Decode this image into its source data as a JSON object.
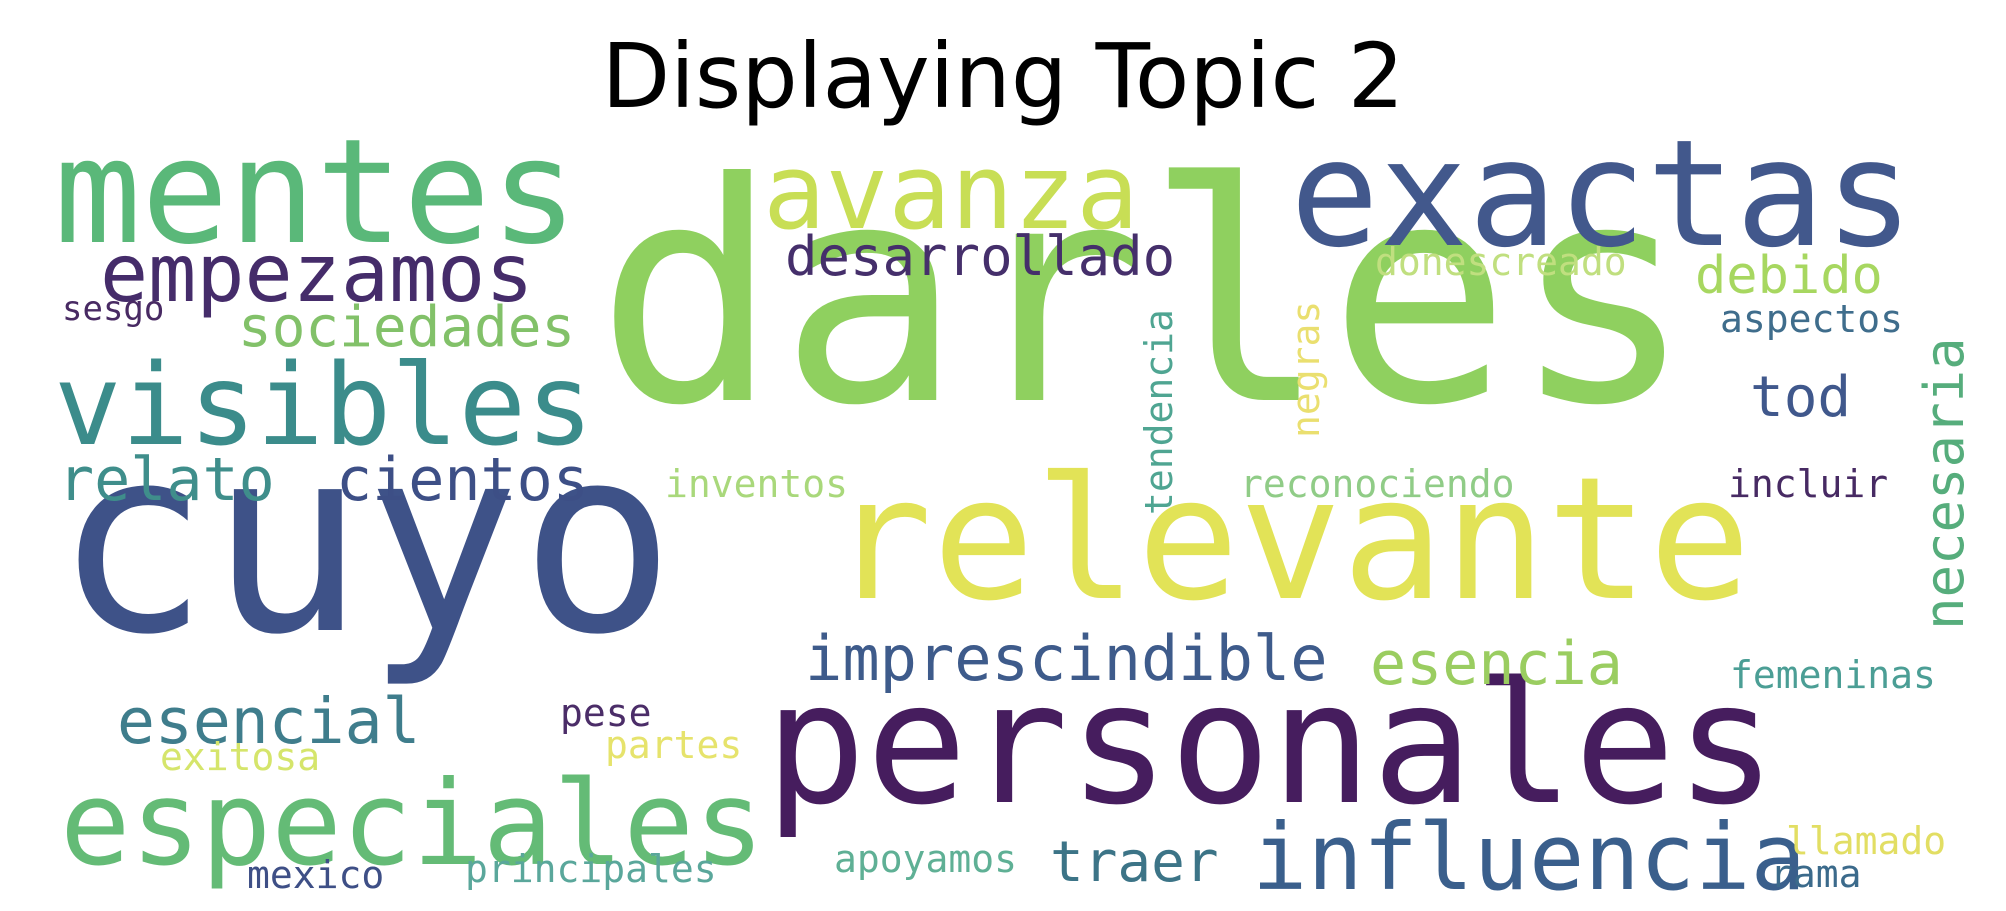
{
  "title": "Displaying Topic 2",
  "colors": {
    "background": "#ffffff",
    "title": "#000000"
  },
  "words": [
    {
      "text": "darles",
      "color": "#8fd05f"
    },
    {
      "text": "cuyo",
      "color": "#3e5288"
    },
    {
      "text": "relevante",
      "color": "#e2e357"
    },
    {
      "text": "personales",
      "color": "#461d5e"
    },
    {
      "text": "exactas",
      "color": "#42588c"
    },
    {
      "text": "mentes",
      "color": "#5ab879"
    },
    {
      "text": "avanza",
      "color": "#c8de55"
    },
    {
      "text": "visibles",
      "color": "#3b8c8b"
    },
    {
      "text": "especiales",
      "color": "#64bb76"
    },
    {
      "text": "influencia",
      "color": "#3a5f8c"
    },
    {
      "text": "empezamos",
      "color": "#452c6a"
    },
    {
      "text": "imprescindible",
      "color": "#3e5b8b"
    },
    {
      "text": "sociedades",
      "color": "#82c169"
    },
    {
      "text": "cientos",
      "color": "#3d4f86"
    },
    {
      "text": "relato",
      "color": "#3f8e8b"
    },
    {
      "text": "desarrollado",
      "color": "#452f6b"
    },
    {
      "text": "esencial",
      "color": "#3f7d8c"
    },
    {
      "text": "esencia",
      "color": "#9acd60"
    },
    {
      "text": "debido",
      "color": "#a7d760"
    },
    {
      "text": "tod",
      "color": "#40588c"
    },
    {
      "text": "necesaria",
      "color": "#56ad7c"
    },
    {
      "text": "traer",
      "color": "#3c7487"
    },
    {
      "text": "principales",
      "color": "#5aa79b"
    },
    {
      "text": "mexico",
      "color": "#3e4f86"
    },
    {
      "text": "apoyamos",
      "color": "#5fb095"
    },
    {
      "text": "llamado",
      "color": "#e2de63"
    },
    {
      "text": "rama",
      "color": "#3b6a8b"
    },
    {
      "text": "femeninas",
      "color": "#4b9e95"
    },
    {
      "text": "incluir",
      "color": "#472a63"
    },
    {
      "text": "aspectos",
      "color": "#3f6d8c"
    },
    {
      "text": "reconociendo",
      "color": "#90cc87"
    },
    {
      "text": "donescreado",
      "color": "#c0df7f"
    },
    {
      "text": "inventos",
      "color": "#a9d87b"
    },
    {
      "text": "tendencia",
      "color": "#4fa592"
    },
    {
      "text": "negras",
      "color": "#eadf6f"
    },
    {
      "text": "pese",
      "color": "#4b2d68"
    },
    {
      "text": "partes",
      "color": "#e6e36c"
    },
    {
      "text": "exitosa",
      "color": "#d5e56b"
    },
    {
      "text": "sesgo",
      "color": "#482a63"
    }
  ]
}
